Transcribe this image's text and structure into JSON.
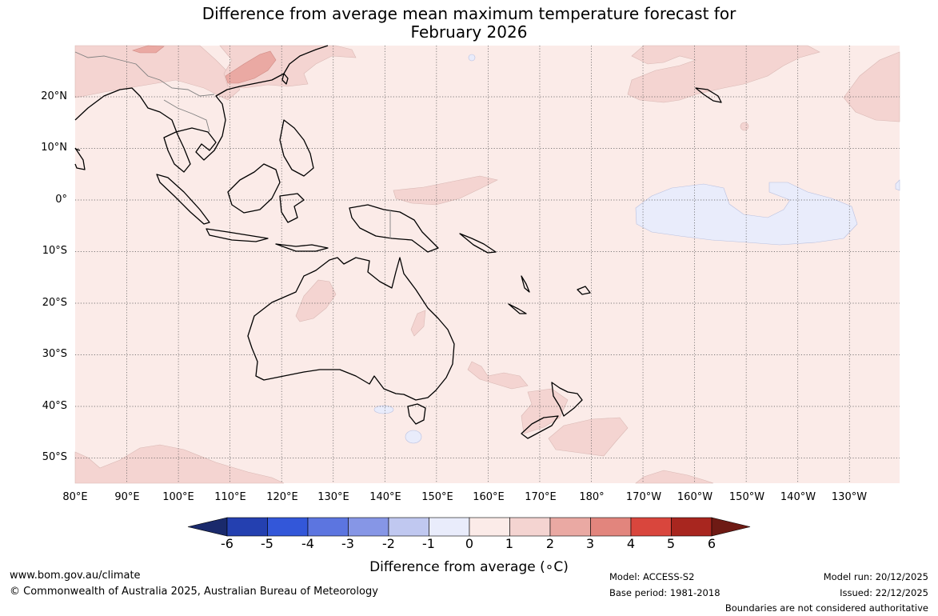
{
  "title": {
    "line1": "Difference from average mean maximum temperature forecast for",
    "line2": "February 2026"
  },
  "map": {
    "lat_labels": [
      "20°N",
      "10°N",
      "0°",
      "10°S",
      "20°S",
      "30°S",
      "40°S",
      "50°S"
    ],
    "lon_labels": [
      "80°E",
      "90°E",
      "100°E",
      "110°E",
      "120°E",
      "130°E",
      "140°E",
      "150°E",
      "160°E",
      "170°E",
      "180°",
      "170°W",
      "160°W",
      "150°W",
      "140°W",
      "130°W"
    ],
    "background_color": "#fbebe8",
    "land_outline_color": "#000000"
  },
  "colorbar": {
    "label": "Difference from average (∘C)",
    "ticks": [
      "-6",
      "-5",
      "-4",
      "-3",
      "-2",
      "-1",
      "0",
      "1",
      "2",
      "3",
      "4",
      "5",
      "6"
    ],
    "colors": [
      "#1a2a6c",
      "#2440b0",
      "#3357d9",
      "#5c75e0",
      "#8696e6",
      "#c0c8f0",
      "#e9ecfb",
      "#fbebe8",
      "#f4d4d1",
      "#eaa9a3",
      "#e2857d",
      "#d9463d",
      "#a8261f",
      "#6e1a14"
    ]
  },
  "footer": {
    "website": "www.bom.gov.au/climate",
    "copyright": "© Commonwealth of Australia 2025, Australian Bureau of Meteorology",
    "model": "Model: ACCESS-S2",
    "base_period": "Base period: 1981-2018",
    "model_run": "Model run: 20/12/2025",
    "issued": "Issued: 22/12/2025",
    "disclaimer": "Boundaries are not considered authoritative"
  }
}
